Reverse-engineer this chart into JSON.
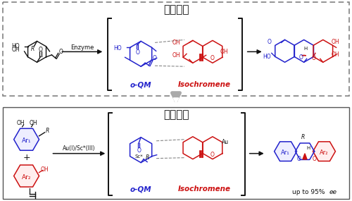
{
  "title_top": "生物合成",
  "title_bottom": "仿生催化",
  "bg_color": "#ffffff",
  "blue": "#2222cc",
  "red": "#cc1111",
  "black": "#111111",
  "gray": "#888888",
  "dgray": "#555555",
  "label_oqm": "o-QM",
  "label_iso": "Isochromene",
  "enzyme_label": "Enzyme",
  "au_sc_label": "Au(I)/Sc*(III)",
  "up_to_label": "up to 95% ",
  "ee_italic": "ee",
  "fig_width": 5.0,
  "fig_height": 2.85,
  "dpi": 100
}
